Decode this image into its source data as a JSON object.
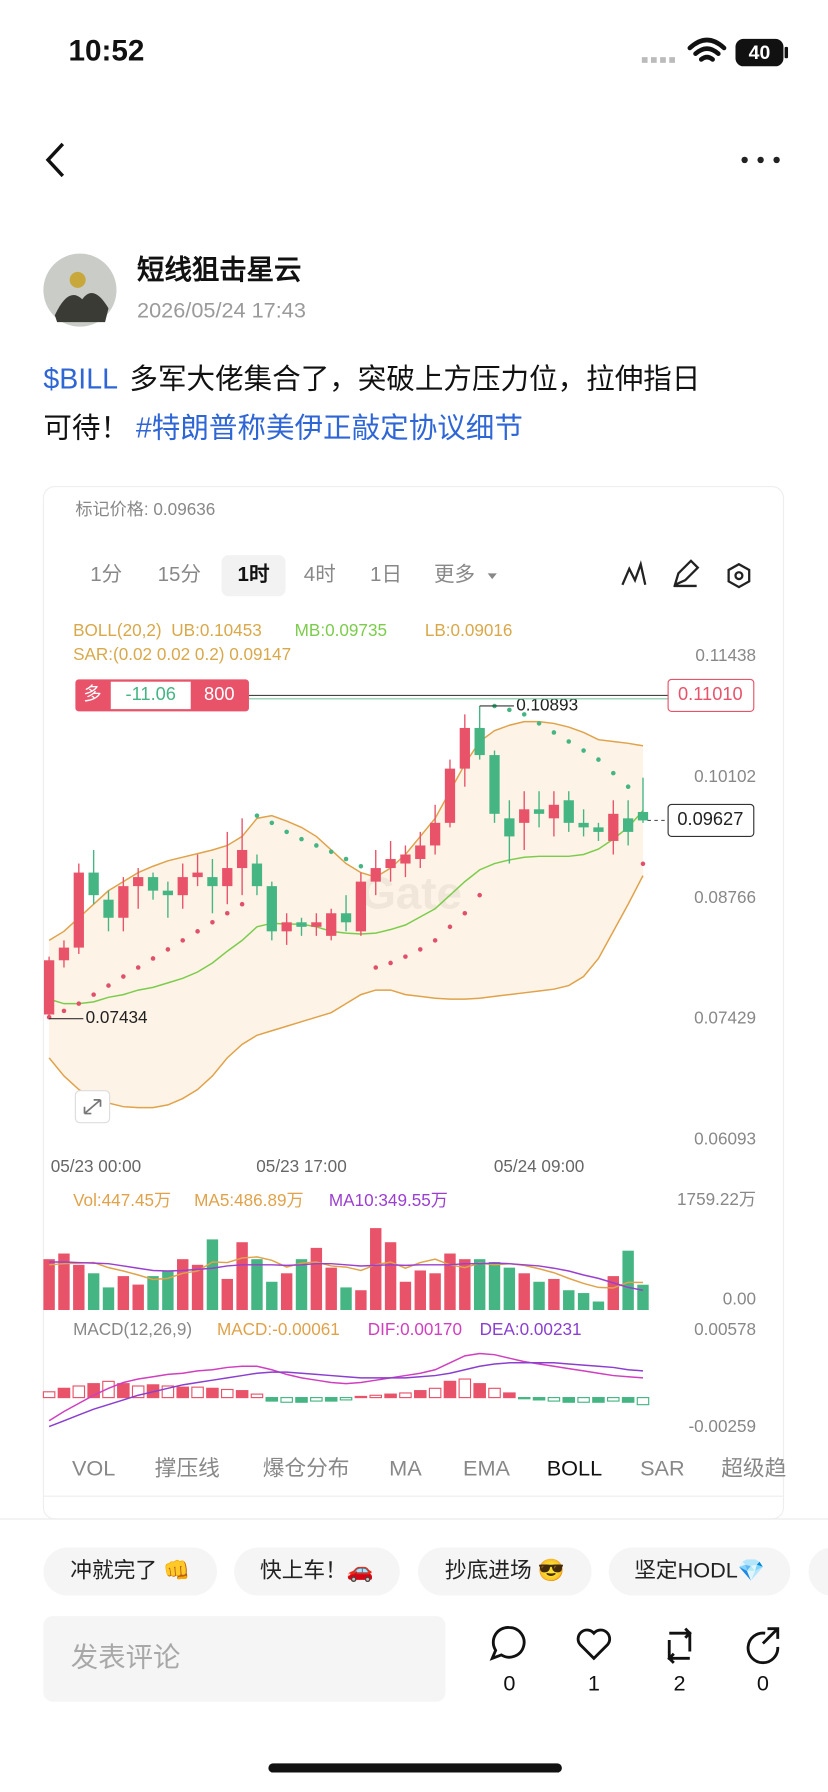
{
  "status_bar": {
    "time": "10:52",
    "battery": "40"
  },
  "post": {
    "author": "短线狙击星云",
    "date": "2026/05/24 17:43",
    "cashtag": "$BILL",
    "line1": "多军大佬集合了，突破上方压力位，拉伸指日",
    "line2": "可待！",
    "hashtag": "#特朗普称美伊正敲定协议细节"
  },
  "widget": {
    "mark_price": "标记价格: 0.09636",
    "timeframes": [
      "1分",
      "15分",
      "1时",
      "4时",
      "1日",
      "更多"
    ],
    "active_timeframe": 2,
    "indicator_tabs": [
      "VOL",
      "撑压线",
      "爆仓分布",
      "MA",
      "EMA",
      "BOLL",
      "SAR",
      "超级趋"
    ],
    "active_tab": 5
  },
  "chart_data": {
    "type": "candlestick",
    "categories": [
      "05/23 00:00",
      null,
      null,
      null,
      null,
      null,
      null,
      null,
      null,
      null,
      null,
      null,
      null,
      null,
      null,
      null,
      null,
      "05/23 17:00",
      null,
      null,
      null,
      null,
      null,
      null,
      null,
      null,
      null,
      null,
      null,
      null,
      null,
      null,
      null,
      "05/24 09:00",
      null,
      null,
      null,
      null,
      null,
      null,
      null
    ],
    "open": [
      0.0748,
      0.0808,
      0.0822,
      0.0905,
      0.0875,
      0.0855,
      0.089,
      0.09,
      0.0885,
      0.088,
      0.09,
      0.09,
      0.089,
      0.091,
      0.0915,
      0.089,
      0.084,
      0.085,
      0.0845,
      0.0835,
      0.086,
      0.084,
      0.0895,
      0.091,
      0.0915,
      0.092,
      0.0935,
      0.096,
      0.102,
      0.1065,
      0.1035,
      0.0965,
      0.096,
      0.0975,
      0.0965,
      0.0985,
      0.096,
      0.0955,
      0.094,
      0.0965,
      0.0972
    ],
    "high": [
      0.0812,
      0.083,
      0.0915,
      0.093,
      0.0885,
      0.09,
      0.091,
      0.0905,
      0.0895,
      0.0915,
      0.0925,
      0.092,
      0.095,
      0.0965,
      0.0925,
      0.0895,
      0.086,
      0.0855,
      0.086,
      0.0865,
      0.088,
      0.0905,
      0.093,
      0.094,
      0.0935,
      0.095,
      0.098,
      0.103,
      0.108,
      0.10893,
      0.104,
      0.0985,
      0.0995,
      0.0995,
      0.0995,
      0.0995,
      0.0975,
      0.096,
      0.0985,
      0.0985,
      0.101
    ],
    "low": [
      0.07434,
      0.08,
      0.0815,
      0.087,
      0.084,
      0.084,
      0.0865,
      0.0875,
      0.0855,
      0.0865,
      0.089,
      0.086,
      0.087,
      0.088,
      0.088,
      0.083,
      0.0825,
      0.0835,
      0.0835,
      0.083,
      0.084,
      0.0835,
      0.088,
      0.0895,
      0.09,
      0.091,
      0.0925,
      0.0955,
      0.1,
      0.103,
      0.096,
      0.0915,
      0.093,
      0.0955,
      0.0945,
      0.095,
      0.0945,
      0.094,
      0.0925,
      0.0935,
      0.096
    ],
    "close": [
      0.0808,
      0.0822,
      0.0905,
      0.088,
      0.0855,
      0.089,
      0.09,
      0.0885,
      0.088,
      0.09,
      0.0905,
      0.089,
      0.091,
      0.093,
      0.089,
      0.084,
      0.085,
      0.0845,
      0.085,
      0.086,
      0.085,
      0.0895,
      0.091,
      0.092,
      0.0925,
      0.0935,
      0.096,
      0.102,
      0.1065,
      0.1035,
      0.097,
      0.0945,
      0.0975,
      0.097,
      0.098,
      0.096,
      0.0955,
      0.095,
      0.097,
      0.095,
      0.09627
    ],
    "up_color": "#e8536a",
    "down_color": "#45b583",
    "ylim": [
      0.06005,
      0.1188
    ],
    "yticks": [
      0.11438,
      0.10102,
      0.08766,
      0.07429,
      0.06093
    ],
    "boll": {
      "legend": [
        "BOLL(20,2)",
        "UB:0.10453",
        "MB:0.09735",
        "LB:0.09016"
      ],
      "ub": [
        0.083,
        0.084,
        0.0855,
        0.087,
        0.0885,
        0.0895,
        0.0905,
        0.0912,
        0.0918,
        0.0922,
        0.0926,
        0.093,
        0.0935,
        0.0945,
        0.0965,
        0.0968,
        0.0962,
        0.0955,
        0.0945,
        0.093,
        0.0915,
        0.0905,
        0.09,
        0.091,
        0.0925,
        0.0945,
        0.0965,
        0.0995,
        0.1025,
        0.105,
        0.1062,
        0.1068,
        0.1072,
        0.1072,
        0.107,
        0.1066,
        0.106,
        0.1052,
        0.105,
        0.1048,
        0.10453
      ],
      "mb": [
        0.0765,
        0.076,
        0.076,
        0.0762,
        0.0767,
        0.077,
        0.0775,
        0.0778,
        0.0783,
        0.0788,
        0.0795,
        0.0805,
        0.0818,
        0.083,
        0.0845,
        0.0849,
        0.0848,
        0.0848,
        0.0845,
        0.084,
        0.0838,
        0.0837,
        0.0838,
        0.0842,
        0.0847,
        0.0856,
        0.0865,
        0.088,
        0.0895,
        0.0908,
        0.0915,
        0.0919,
        0.0922,
        0.0923,
        0.0923,
        0.0923,
        0.0925,
        0.0931,
        0.0942,
        0.0955,
        0.09735
      ],
      "lb": [
        0.07,
        0.068,
        0.0665,
        0.0655,
        0.065,
        0.0646,
        0.0645,
        0.0645,
        0.0648,
        0.0655,
        0.0665,
        0.068,
        0.07,
        0.0715,
        0.0725,
        0.073,
        0.0735,
        0.074,
        0.0745,
        0.075,
        0.076,
        0.077,
        0.0775,
        0.0775,
        0.077,
        0.0768,
        0.0766,
        0.0765,
        0.0765,
        0.0766,
        0.0768,
        0.077,
        0.0772,
        0.0774,
        0.0776,
        0.078,
        0.079,
        0.081,
        0.084,
        0.087,
        0.09016
      ]
    },
    "sar": {
      "legend": "SAR:(0.02 0.02 0.2) 0.09147",
      "values": [
        0.0745,
        0.0752,
        0.076,
        0.077,
        0.078,
        0.079,
        0.08,
        0.081,
        0.082,
        0.083,
        0.084,
        0.085,
        0.086,
        0.087,
        0.0968,
        0.096,
        0.095,
        0.0942,
        0.0935,
        0.0928,
        0.092,
        0.0912,
        0.08,
        0.0805,
        0.0812,
        0.082,
        0.083,
        0.0845,
        0.086,
        0.088,
        0.10893,
        0.1085,
        0.108,
        0.107,
        0.106,
        0.105,
        0.104,
        0.103,
        0.1015,
        0.1,
        0.09147
      ]
    },
    "high_marker": 0.10893,
    "low_marker": 0.07434,
    "last_price": 0.09627,
    "position": {
      "side": "多",
      "pnl": -11.06,
      "size": 800,
      "price": {
        "value": 0.1101,
        "label": "0.11010"
      }
    },
    "watermark": "Gate",
    "volume": {
      "legend": [
        "Vol:447.45万",
        "MA5:486.89万",
        "MA10:349.55万"
      ],
      "values": [
        900,
        1000,
        800,
        650,
        400,
        600,
        450,
        600,
        700,
        900,
        800,
        1250,
        550,
        1200,
        900,
        500,
        650,
        900,
        1100,
        750,
        400,
        350,
        1450,
        1200,
        500,
        700,
        650,
        1000,
        900,
        900,
        850,
        750,
        650,
        500,
        550,
        350,
        300,
        150,
        600,
        1050,
        447.45
      ],
      "ma5": [
        800,
        820,
        830,
        840,
        750,
        690,
        620,
        540,
        560,
        650,
        690,
        850,
        840,
        920,
        940,
        880,
        760,
        830,
        850,
        780,
        760,
        700,
        800,
        850,
        740,
        840,
        900,
        800,
        750,
        830,
        800,
        820,
        790,
        730,
        660,
        560,
        470,
        400,
        390,
        490,
        486.89
      ],
      "ma10": [
        850,
        850,
        840,
        830,
        820,
        780,
        740,
        700,
        690,
        700,
        720,
        740,
        780,
        800,
        800,
        800,
        790,
        800,
        820,
        820,
        800,
        780,
        790,
        800,
        790,
        800,
        800,
        800,
        820,
        820,
        830,
        820,
        800,
        780,
        740,
        690,
        620,
        560,
        480,
        400,
        349.55
      ],
      "ylim": [
        0,
        1759.22
      ],
      "yticks": [
        {
          "value": 1759.22,
          "label": "1759.22万"
        },
        {
          "value": 0,
          "label": "0.00"
        }
      ]
    },
    "macd": {
      "legend": [
        "MACD(12,26,9)",
        "MACD:-0.00061",
        "DIF:0.00170",
        "DEA:0.00231"
      ],
      "hist": [
        0.0005,
        0.0008,
        0.001,
        0.0012,
        0.0014,
        0.0012,
        0.001,
        0.0011,
        0.001,
        0.0009,
        0.0009,
        0.0008,
        0.0007,
        0.0006,
        0.0003,
        -0.0003,
        -0.0004,
        -0.0004,
        -0.0003,
        -0.0003,
        -0.0002,
        0.0001,
        0.0002,
        0.0003,
        0.0004,
        0.0006,
        0.0008,
        0.0014,
        0.0016,
        0.0012,
        0.0008,
        0.0004,
        -0.0001,
        -0.0002,
        -0.0003,
        -0.0004,
        -0.0004,
        -0.0004,
        -0.0003,
        -0.0004,
        -0.00061
      ],
      "dif": [
        -0.002,
        -0.0012,
        -0.0005,
        0.0002,
        0.0008,
        0.0013,
        0.0016,
        0.0018,
        0.002,
        0.0021,
        0.0023,
        0.0024,
        0.0026,
        0.0027,
        0.0027,
        0.0024,
        0.002,
        0.0017,
        0.0015,
        0.0013,
        0.0012,
        0.0013,
        0.0015,
        0.0017,
        0.0019,
        0.0021,
        0.0024,
        0.003,
        0.0036,
        0.0038,
        0.0037,
        0.0034,
        0.0031,
        0.0029,
        0.0027,
        0.0025,
        0.0023,
        0.0021,
        0.0019,
        0.0018,
        0.0017
      ],
      "dea": [
        -0.0025,
        -0.002,
        -0.0015,
        -0.001,
        -0.0006,
        -0.0002,
        0.0002,
        0.0005,
        0.0008,
        0.0011,
        0.0013,
        0.0015,
        0.0017,
        0.0019,
        0.0021,
        0.0022,
        0.0022,
        0.0021,
        0.002,
        0.0019,
        0.0018,
        0.0017,
        0.0017,
        0.0017,
        0.0017,
        0.0018,
        0.0019,
        0.0021,
        0.0024,
        0.0027,
        0.0029,
        0.003,
        0.003,
        0.003,
        0.003,
        0.0029,
        0.0028,
        0.0027,
        0.0026,
        0.0024,
        0.0023
      ],
      "ylim": [
        -0.00259,
        0.00578
      ],
      "yticks": [
        0.00578,
        -0.00259
      ]
    }
  },
  "footer": {
    "quick_replies": [
      "冲就完了 👊",
      "快上车！🚗",
      "抄底进场 😎",
      "坚定HODL💎"
    ],
    "comment_placeholder": "发表评论",
    "counts": [
      0,
      1,
      2,
      0
    ]
  }
}
